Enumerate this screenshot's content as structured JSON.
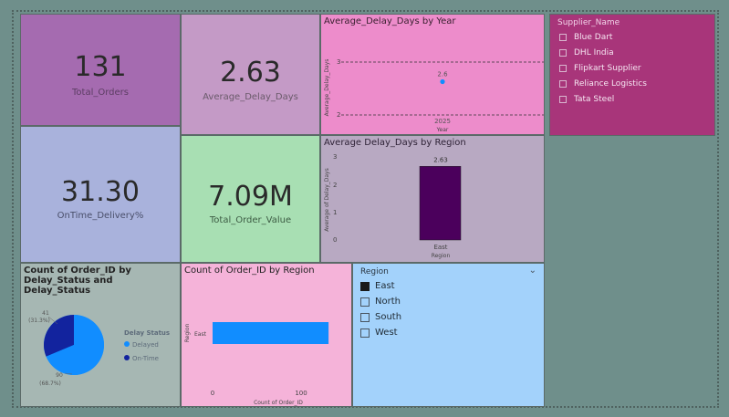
{
  "kpis": {
    "total_orders": {
      "value": "131",
      "label": "Total_Orders"
    },
    "avg_delay": {
      "value": "2.63",
      "label": "Average_Delay_Days"
    },
    "ontime": {
      "value": "31.30",
      "label": "OnTime_Delivery%"
    },
    "order_value": {
      "value": "7.09M",
      "label": "Total_Order_Value"
    }
  },
  "colors": {
    "orders_tile": "#a56bb0",
    "delay_tile": "#c49ac6",
    "ontime_tile": "#a9b2dc",
    "value_tile": "#a8dfb3",
    "year_chart_bg": "#ed8ccb",
    "region_chart_bg": "#b8a9c2",
    "supplier_bg": "#a8357a",
    "status_bg": "#a6b7b3",
    "bar_region_bg": "#f5b3d9",
    "region_slicer_bg": "#a3d2fb",
    "delayed": "#118dff",
    "ontime": "#12239e",
    "region_bar": "#4b005c",
    "h_bar": "#118dff"
  },
  "charts": {
    "year_chart": {
      "title": "Average_Delay_Days by Year",
      "ylabel": "Average_Delay_Days",
      "xlabel": "Year",
      "y_ticks": [
        "3",
        "2"
      ],
      "point_label": "2.6",
      "x_tick": "2025"
    },
    "region_chart": {
      "title": "Average Delay_Days by Region",
      "ylabel": "Average of Delay_Days",
      "xlabel": "Region",
      "y_ticks": [
        "3",
        "2",
        "1",
        "0"
      ],
      "bar_label": "2.63",
      "x_tick": "East"
    },
    "status_chart": {
      "title": "Count of Order_ID by Delay_Status and Delay_Status",
      "legend_title": "Delay Status",
      "legend": [
        "Delayed",
        "On-Time"
      ],
      "label_ontime_count": "41",
      "label_ontime_pct": "(31.3%)",
      "label_delayed_count": "90",
      "label_delayed_pct": "(68.7%)"
    },
    "order_region_chart": {
      "title": "Count of Order_ID by Region",
      "ylabel": "Region",
      "xlabel": "Count of Order_ID",
      "y_tick": "East",
      "x_ticks": [
        "0",
        "100"
      ]
    }
  },
  "supplier_slicer": {
    "title": "Supplier_Name",
    "items": [
      "Blue Dart",
      "DHL India",
      "Flipkart Supplier",
      "Reliance Logistics",
      "Tata Steel"
    ]
  },
  "region_slicer": {
    "title": "Region",
    "items": [
      "East",
      "North",
      "South",
      "West"
    ],
    "selected": "East"
  },
  "chart_data": [
    {
      "type": "scatter",
      "title": "Average_Delay_Days by Year",
      "x": [
        2025
      ],
      "y": [
        2.63
      ],
      "xlabel": "Year",
      "ylabel": "Average_Delay_Days",
      "ylim": [
        1.8,
        3.2
      ]
    },
    {
      "type": "bar",
      "title": "Average Delay_Days by Region",
      "categories": [
        "East"
      ],
      "values": [
        2.63
      ],
      "xlabel": "Region",
      "ylabel": "Average of Delay_Days",
      "ylim": [
        0,
        3
      ]
    },
    {
      "type": "pie",
      "title": "Count of Order_ID by Delay_Status and Delay_Status",
      "categories": [
        "Delayed",
        "On-Time"
      ],
      "values": [
        90,
        41
      ],
      "percent": [
        68.7,
        31.3
      ]
    },
    {
      "type": "bar",
      "orientation": "horizontal",
      "title": "Count of Order_ID by Region",
      "categories": [
        "East"
      ],
      "values": [
        131
      ],
      "xlabel": "Count of Order_ID",
      "ylabel": "Region",
      "xlim": [
        0,
        140
      ]
    }
  ]
}
